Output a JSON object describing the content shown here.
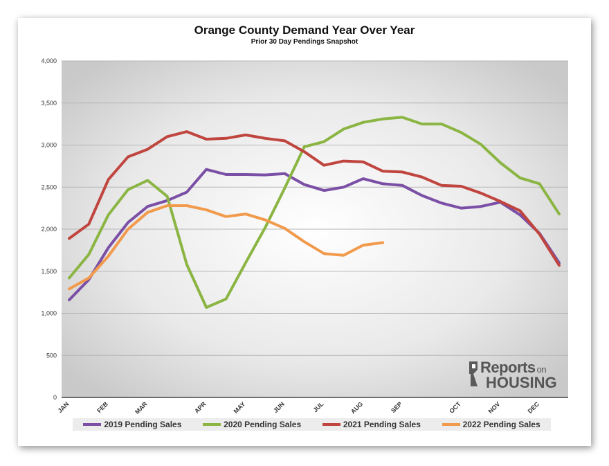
{
  "chart_data": {
    "type": "line",
    "title": "Orange County Demand Year Over Year",
    "subtitle": "Prior 30 Day Pendings Snapshot",
    "xlabel": "",
    "ylabel": "",
    "ylim": [
      0,
      4000
    ],
    "yticks": [
      0,
      500,
      1000,
      1500,
      2000,
      2500,
      3000,
      3500,
      4000
    ],
    "ytick_labels": [
      "0",
      "500",
      "1,000",
      "1,500",
      "2,000",
      "2,500",
      "3,000",
      "3,500",
      "4,000"
    ],
    "month_labels": [
      "JAN",
      "FEB",
      "MAR",
      "APR",
      "MAY",
      "JUN",
      "JUL",
      "AUG",
      "SEP",
      "OCT",
      "NOV",
      "DEC"
    ],
    "month_positions": [
      0,
      2,
      4,
      7,
      9,
      11,
      13,
      15,
      17,
      20,
      22,
      24
    ],
    "x_points": 26,
    "grid": true,
    "legend_position": "bottom",
    "series": [
      {
        "name": "2019 Pending Sales",
        "color": "#7a4fa5",
        "values": [
          1160,
          1400,
          1780,
          2080,
          2270,
          2340,
          2440,
          2710,
          2650,
          2650,
          2645,
          2660,
          2530,
          2460,
          2500,
          2600,
          2540,
          2520,
          2400,
          2310,
          2250,
          2270,
          2320,
          2170,
          1950,
          1600
        ]
      },
      {
        "name": "2020 Pending Sales",
        "color": "#8bb543",
        "values": [
          1420,
          1700,
          2170,
          2470,
          2580,
          2390,
          1580,
          1070,
          1170,
          1600,
          2020,
          2490,
          2980,
          3040,
          3190,
          3270,
          3310,
          3330,
          3250,
          3250,
          3150,
          3010,
          2790,
          2610,
          2540,
          2180
        ]
      },
      {
        "name": "2021 Pending Sales",
        "color": "#c0453f",
        "values": [
          1890,
          2060,
          2590,
          2860,
          2950,
          3100,
          3160,
          3070,
          3080,
          3120,
          3080,
          3050,
          2920,
          2760,
          2810,
          2800,
          2690,
          2680,
          2620,
          2520,
          2510,
          2430,
          2330,
          2220,
          1940,
          1570
        ]
      },
      {
        "name": "2022 Pending Sales",
        "color": "#f29a4c",
        "values": [
          1290,
          1420,
          1680,
          2000,
          2200,
          2280,
          2280,
          2230,
          2150,
          2180,
          2110,
          2010,
          1850,
          1710,
          1690,
          1810,
          1840
        ]
      }
    ]
  },
  "logo": {
    "line1": "Reports",
    "line1_small": "on",
    "line2": "HOUSING"
  }
}
